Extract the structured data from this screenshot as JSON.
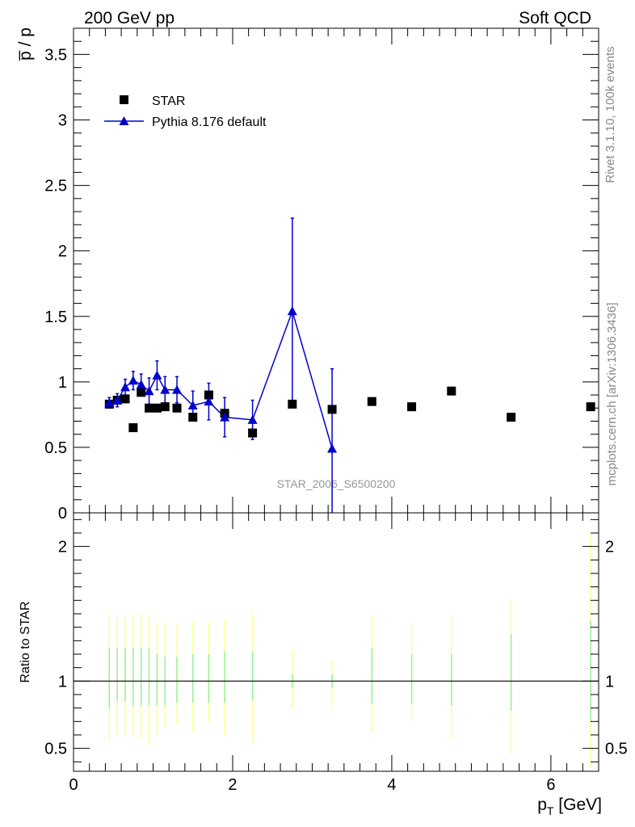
{
  "header": {
    "left": "200 GeV pp",
    "right": "Soft QCD"
  },
  "side_labels": {
    "version": "Rivet 3.1.10,  100k events",
    "source": "mcplots.cern.ch [arXiv:1306.3436]"
  },
  "chart_data": [
    {
      "panel": "main",
      "type": "scatter",
      "title": "",
      "ylabel": "p̅ / p",
      "xlim": [
        0,
        6.6
      ],
      "ylim": [
        0,
        3.7
      ],
      "yticks": [
        0,
        0.5,
        1,
        1.5,
        2,
        2.5,
        3,
        3.5
      ],
      "ytick_labels": [
        "0",
        "0.5",
        "1",
        "1.5",
        "2",
        "2.5",
        "3",
        "3.5"
      ],
      "legend_position": "top-left",
      "watermark": "STAR_2006_S6500200",
      "series": [
        {
          "name": "STAR",
          "marker": "square",
          "color": "#000000",
          "x": [
            0.45,
            0.55,
            0.65,
            0.75,
            0.85,
            0.95,
            1.05,
            1.15,
            1.3,
            1.5,
            1.7,
            1.9,
            2.25,
            2.75,
            3.25,
            3.75,
            4.25,
            4.75,
            5.5,
            6.5
          ],
          "y": [
            0.83,
            0.86,
            0.87,
            0.65,
            0.92,
            0.8,
            0.8,
            0.81,
            0.8,
            0.73,
            0.9,
            0.76,
            0.61,
            0.83,
            0.79,
            0.85,
            0.81,
            0.93,
            0.73,
            0.81
          ]
        },
        {
          "name": "Pythia 8.176 default",
          "marker": "triangle",
          "color": "#0000cc",
          "x": [
            0.45,
            0.55,
            0.65,
            0.75,
            0.85,
            0.95,
            1.05,
            1.15,
            1.3,
            1.5,
            1.7,
            1.9,
            2.25,
            2.75,
            3.25
          ],
          "y": [
            0.84,
            0.86,
            0.96,
            1.01,
            0.98,
            0.93,
            1.05,
            0.94,
            0.94,
            0.82,
            0.85,
            0.73,
            0.71,
            1.54,
            0.49
          ],
          "err": [
            0.04,
            0.05,
            0.06,
            0.07,
            0.08,
            0.1,
            0.11,
            0.1,
            0.1,
            0.11,
            0.14,
            0.15,
            0.15,
            0.71,
            0.61
          ]
        }
      ]
    },
    {
      "panel": "ratio",
      "type": "scatter",
      "ylabel": "Ratio to STAR",
      "xlabel": "p_T [GeV]",
      "xlabel_main": "p",
      "xlabel_sub": "T",
      "xlabel_unit": " [GeV]",
      "xlim": [
        0,
        6.6
      ],
      "ylim": [
        0.33,
        2.25
      ],
      "xticks": [
        0,
        2,
        4,
        6
      ],
      "xtick_labels": [
        "0",
        "2",
        "4",
        "6"
      ],
      "yticks": [
        0.5,
        1,
        2
      ],
      "ytick_labels": [
        "0.5",
        "1",
        "2"
      ],
      "reference_line": 1,
      "bands": {
        "x": [
          0.45,
          0.55,
          0.65,
          0.75,
          0.85,
          0.95,
          1.05,
          1.15,
          1.3,
          1.5,
          1.7,
          1.9,
          2.25,
          2.75,
          3.25,
          3.75,
          4.25,
          4.75,
          5.5,
          6.5
        ],
        "outer_lo": [
          0.56,
          0.59,
          0.6,
          0.6,
          0.58,
          0.52,
          0.6,
          0.65,
          0.68,
          0.62,
          0.7,
          0.6,
          0.54,
          0.8,
          0.82,
          0.62,
          0.72,
          0.58,
          0.46,
          0.35
        ],
        "outer_hi": [
          1.5,
          1.47,
          1.48,
          1.49,
          1.5,
          1.49,
          1.44,
          1.43,
          1.42,
          1.44,
          1.44,
          1.46,
          1.5,
          1.23,
          1.15,
          1.48,
          1.42,
          1.48,
          1.6,
          2.1
        ],
        "inner_lo": [
          0.8,
          0.85,
          0.85,
          0.82,
          0.82,
          0.82,
          0.82,
          0.82,
          0.84,
          0.84,
          0.84,
          0.84,
          0.86,
          0.95,
          0.95,
          0.83,
          0.83,
          0.82,
          0.78,
          0.7
        ],
        "inner_hi": [
          1.25,
          1.25,
          1.25,
          1.25,
          1.25,
          1.25,
          1.2,
          1.18,
          1.18,
          1.2,
          1.2,
          1.22,
          1.22,
          1.05,
          1.05,
          1.25,
          1.2,
          1.2,
          1.35,
          1.45
        ],
        "outer_color": "#ffff99",
        "inner_color": "#99ee99"
      }
    }
  ]
}
